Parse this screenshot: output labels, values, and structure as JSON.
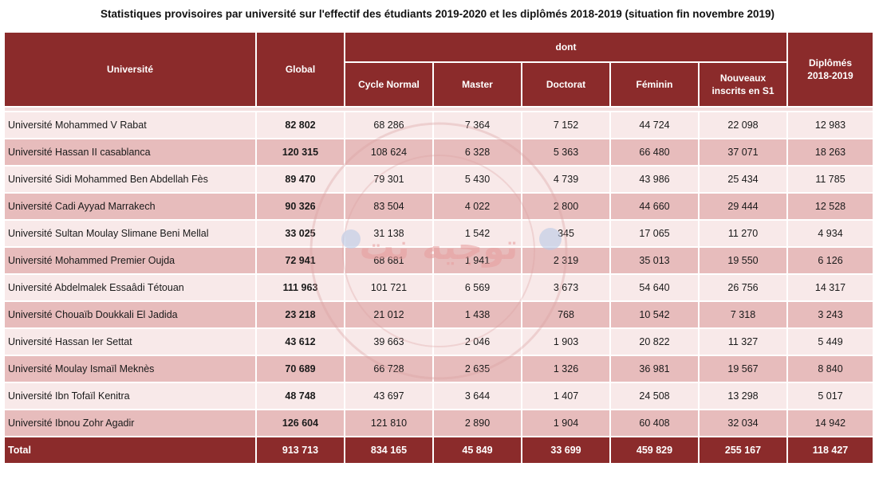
{
  "title": "Statistiques provisoires par université sur l'effectif des étudiants 2019-2020 et les diplômés 2018-2019 (situation fin novembre 2019)",
  "headers": {
    "universite": "Université",
    "global": "Global",
    "dont": "dont",
    "cycle_normal": "Cycle Normal",
    "master": "Master",
    "doctorat": "Doctorat",
    "feminin": "Féminin",
    "nouveaux_1": "Nouveaux",
    "nouveaux_2": "inscrits en S1",
    "diplomes_1": "Diplômés",
    "diplomes_2": "2018-2019"
  },
  "rows": [
    {
      "name": "Université Mohammed V Rabat",
      "global": "82 802",
      "cycle": "68 286",
      "master": "7 364",
      "doctorat": "7 152",
      "feminin": "44 724",
      "nouveaux": "22 098",
      "diplomes": "12 983"
    },
    {
      "name": "Université Hassan II casablanca",
      "global": "120 315",
      "cycle": "108 624",
      "master": "6 328",
      "doctorat": "5 363",
      "feminin": "66 480",
      "nouveaux": "37 071",
      "diplomes": "18 263"
    },
    {
      "name": "Université Sidi Mohammed Ben Abdellah Fès",
      "global": "89 470",
      "cycle": "79 301",
      "master": "5 430",
      "doctorat": "4 739",
      "feminin": "43 986",
      "nouveaux": "25 434",
      "diplomes": "11 785"
    },
    {
      "name": "Université Cadi Ayyad Marrakech",
      "global": "90 326",
      "cycle": "83 504",
      "master": "4 022",
      "doctorat": "2 800",
      "feminin": "44 660",
      "nouveaux": "29 444",
      "diplomes": "12 528"
    },
    {
      "name": "Université Sultan Moulay Slimane Beni Mellal",
      "global": "33 025",
      "cycle": "31 138",
      "master": "1 542",
      "doctorat": "345",
      "feminin": "17 065",
      "nouveaux": "11 270",
      "diplomes": "4 934"
    },
    {
      "name": "Université Mohammed Premier Oujda",
      "global": "72 941",
      "cycle": "68 681",
      "master": "1 941",
      "doctorat": "2 319",
      "feminin": "35 013",
      "nouveaux": "19 550",
      "diplomes": "6 126"
    },
    {
      "name": "Université Abdelmalek Essaâdi Tétouan",
      "global": "111 963",
      "cycle": "101 721",
      "master": "6 569",
      "doctorat": "3 673",
      "feminin": "54 640",
      "nouveaux": "26 756",
      "diplomes": "14 317"
    },
    {
      "name": "Université Chouaïb Doukkali El Jadida",
      "global": "23 218",
      "cycle": "21 012",
      "master": "1 438",
      "doctorat": "768",
      "feminin": "10 542",
      "nouveaux": "7 318",
      "diplomes": "3 243"
    },
    {
      "name": "Université Hassan Ier Settat",
      "global": "43 612",
      "cycle": "39 663",
      "master": "2 046",
      "doctorat": "1 903",
      "feminin": "20 822",
      "nouveaux": "11 327",
      "diplomes": "5 449"
    },
    {
      "name": "Université Moulay Ismaïl Meknès",
      "global": "70 689",
      "cycle": "66 728",
      "master": "2 635",
      "doctorat": "1 326",
      "feminin": "36 981",
      "nouveaux": "19 567",
      "diplomes": "8 840"
    },
    {
      "name": "Université Ibn Tofaïl Kenitra",
      "global": "48 748",
      "cycle": "43 697",
      "master": "3 644",
      "doctorat": "1 407",
      "feminin": "24 508",
      "nouveaux": "13 298",
      "diplomes": "5 017"
    },
    {
      "name": "Université Ibnou Zohr Agadir",
      "global": "126 604",
      "cycle": "121 810",
      "master": "2 890",
      "doctorat": "1 904",
      "feminin": "60 408",
      "nouveaux": "32 034",
      "diplomes": "14 942"
    }
  ],
  "total": {
    "name": "Total",
    "global": "913 713",
    "cycle": "834 165",
    "master": "45 849",
    "doctorat": "33 699",
    "feminin": "459 829",
    "nouveaux": "255 167",
    "diplomes": "118 427"
  },
  "watermark": {
    "text": "توجيه نت",
    "icon": "watermark-seal-icon",
    "color": "#e8a0a0"
  }
}
